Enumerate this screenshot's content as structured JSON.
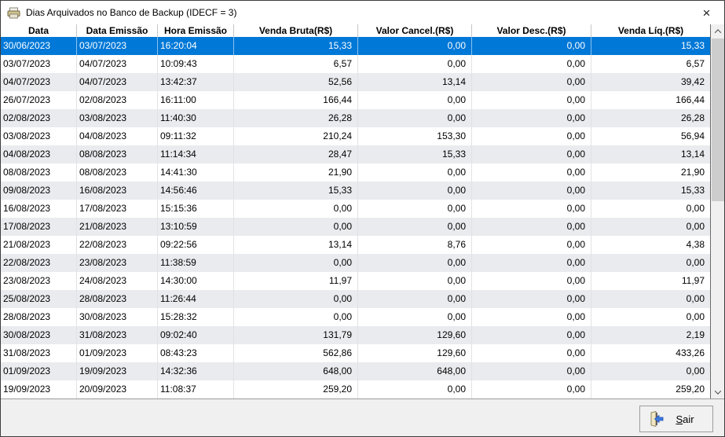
{
  "window": {
    "title": "Dias Arquivados no Banco de Backup (IDECF = 3)",
    "close_glyph": "×"
  },
  "colors": {
    "selected_row": "#0078d7",
    "alt_row": "#e9ebee",
    "row": "#ffffff",
    "panel": "#f0f0f0"
  },
  "table": {
    "columns": [
      {
        "label": "Data",
        "align": "left"
      },
      {
        "label": "Data Emissão",
        "align": "left"
      },
      {
        "label": "Hora Emissão",
        "align": "left"
      },
      {
        "label": "Venda Bruta(R$)",
        "align": "right"
      },
      {
        "label": "Valor Cancel.(R$)",
        "align": "right"
      },
      {
        "label": "Valor Desc.(R$)",
        "align": "right"
      },
      {
        "label": "Venda Líq.(R$)",
        "align": "right"
      }
    ],
    "selected_row_index": 0,
    "rows": [
      [
        "30/06/2023",
        "03/07/2023",
        "16:20:04",
        "15,33",
        "0,00",
        "0,00",
        "15,33"
      ],
      [
        "03/07/2023",
        "04/07/2023",
        "10:09:43",
        "6,57",
        "0,00",
        "0,00",
        "6,57"
      ],
      [
        "04/07/2023",
        "04/07/2023",
        "13:42:37",
        "52,56",
        "13,14",
        "0,00",
        "39,42"
      ],
      [
        "26/07/2023",
        "02/08/2023",
        "16:11:00",
        "166,44",
        "0,00",
        "0,00",
        "166,44"
      ],
      [
        "02/08/2023",
        "03/08/2023",
        "11:40:30",
        "26,28",
        "0,00",
        "0,00",
        "26,28"
      ],
      [
        "03/08/2023",
        "04/08/2023",
        "09:11:32",
        "210,24",
        "153,30",
        "0,00",
        "56,94"
      ],
      [
        "04/08/2023",
        "08/08/2023",
        "11:14:34",
        "28,47",
        "15,33",
        "0,00",
        "13,14"
      ],
      [
        "08/08/2023",
        "08/08/2023",
        "14:41:30",
        "21,90",
        "0,00",
        "0,00",
        "21,90"
      ],
      [
        "09/08/2023",
        "16/08/2023",
        "14:56:46",
        "15,33",
        "0,00",
        "0,00",
        "15,33"
      ],
      [
        "16/08/2023",
        "17/08/2023",
        "15:15:36",
        "0,00",
        "0,00",
        "0,00",
        "0,00"
      ],
      [
        "17/08/2023",
        "21/08/2023",
        "13:10:59",
        "0,00",
        "0,00",
        "0,00",
        "0,00"
      ],
      [
        "21/08/2023",
        "22/08/2023",
        "09:22:56",
        "13,14",
        "8,76",
        "0,00",
        "4,38"
      ],
      [
        "22/08/2023",
        "23/08/2023",
        "11:38:59",
        "0,00",
        "0,00",
        "0,00",
        "0,00"
      ],
      [
        "23/08/2023",
        "24/08/2023",
        "14:30:00",
        "11,97",
        "0,00",
        "0,00",
        "11,97"
      ],
      [
        "25/08/2023",
        "28/08/2023",
        "11:26:44",
        "0,00",
        "0,00",
        "0,00",
        "0,00"
      ],
      [
        "28/08/2023",
        "30/08/2023",
        "15:28:32",
        "0,00",
        "0,00",
        "0,00",
        "0,00"
      ],
      [
        "30/08/2023",
        "31/08/2023",
        "09:02:40",
        "131,79",
        "129,60",
        "0,00",
        "2,19"
      ],
      [
        "31/08/2023",
        "01/09/2023",
        "08:43:23",
        "562,86",
        "129,60",
        "0,00",
        "433,26"
      ],
      [
        "01/09/2023",
        "19/09/2023",
        "14:32:36",
        "648,00",
        "648,00",
        "0,00",
        "0,00"
      ],
      [
        "19/09/2023",
        "20/09/2023",
        "11:08:37",
        "259,20",
        "0,00",
        "0,00",
        "259,20"
      ]
    ]
  },
  "footer": {
    "exit_accel": "S",
    "exit_rest": "air"
  }
}
